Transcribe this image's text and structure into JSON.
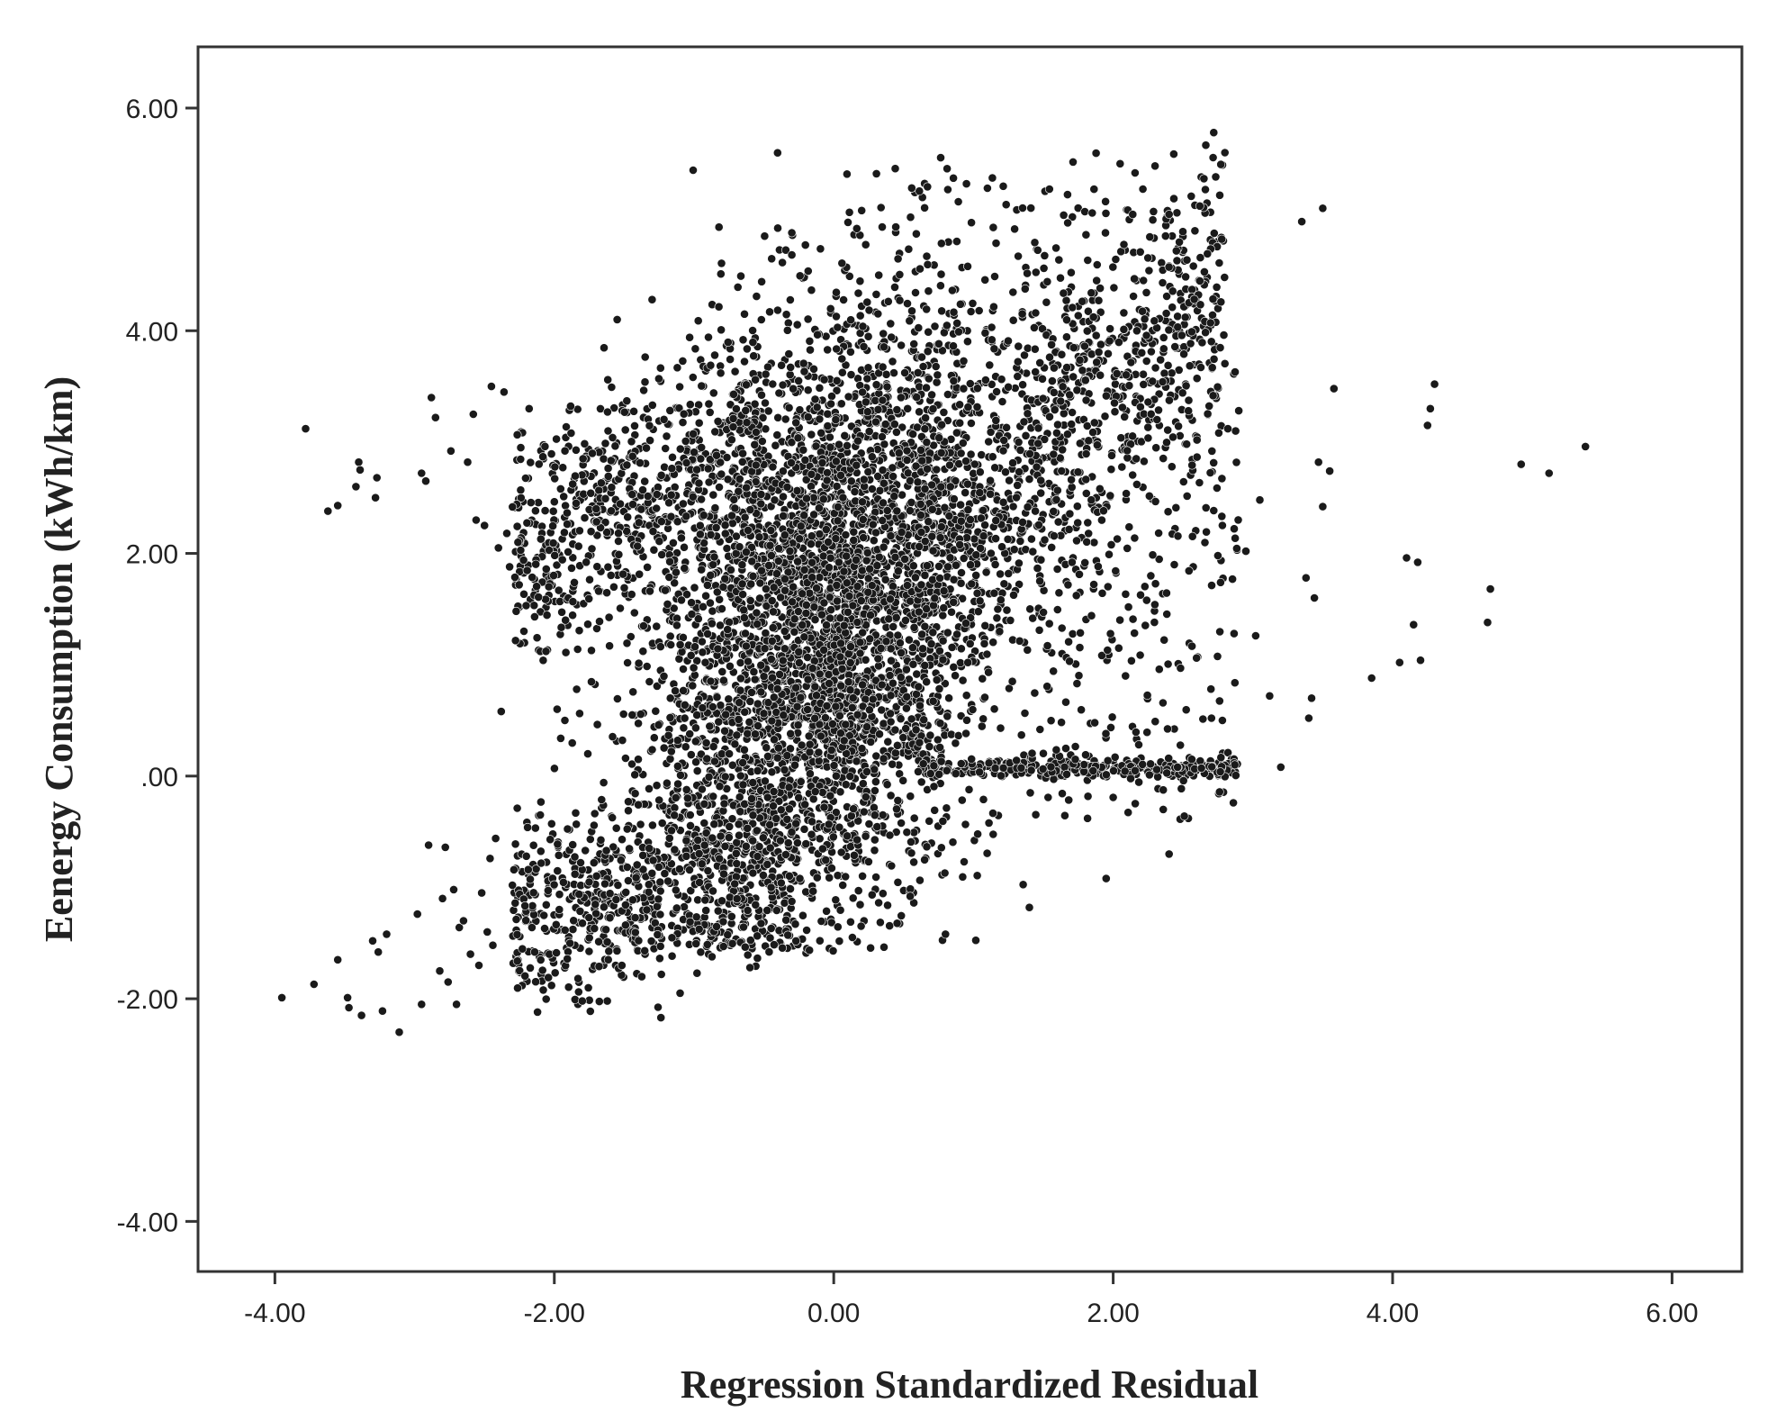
{
  "chart_data": {
    "type": "scatter",
    "title": "",
    "xlabel": "Regression Standardized Residual",
    "ylabel": "Eenergy Consumption (kWh/km)",
    "xlim": [
      -4.55,
      6.5
    ],
    "ylim": [
      -4.45,
      6.55
    ],
    "x_ticks": [
      -4,
      -2,
      0,
      2,
      4,
      6
    ],
    "x_tick_labels": [
      "-4.00",
      "-2.00",
      "0.00",
      "2.00",
      "4.00",
      "6.00"
    ],
    "y_ticks": [
      -4,
      -2,
      0,
      2,
      4,
      6
    ],
    "y_tick_labels": [
      "-4.00",
      "-2.00",
      ".00",
      "2.00",
      "4.00",
      "6.00"
    ],
    "grid": false,
    "legend": "none",
    "marker_color": "#1a1a1a",
    "series": [
      {
        "points": [
          [
            -3.95,
            -1.99
          ],
          [
            -3.78,
            3.12
          ],
          [
            -3.72,
            -1.87
          ],
          [
            -3.62,
            2.38
          ],
          [
            -3.55,
            2.43
          ],
          [
            -3.55,
            -1.65
          ],
          [
            -3.48,
            -1.99
          ],
          [
            -3.47,
            -2.08
          ],
          [
            -3.42,
            2.6
          ],
          [
            -3.4,
            2.82
          ],
          [
            -3.39,
            2.75
          ],
          [
            -3.38,
            -2.15
          ],
          [
            -3.3,
            -1.48
          ],
          [
            -3.28,
            2.5
          ],
          [
            -3.27,
            2.68
          ],
          [
            -3.26,
            -1.58
          ],
          [
            -3.23,
            -2.11
          ],
          [
            -3.2,
            -1.42
          ],
          [
            -3.11,
            -2.3
          ],
          [
            -2.98,
            -1.24
          ],
          [
            -2.95,
            -2.05
          ],
          [
            -2.95,
            2.72
          ],
          [
            -2.92,
            2.65
          ],
          [
            -2.9,
            -0.62
          ],
          [
            -2.88,
            3.4
          ],
          [
            -2.85,
            3.22
          ],
          [
            -2.82,
            -1.75
          ],
          [
            -2.8,
            -1.1
          ],
          [
            -2.78,
            -0.64
          ],
          [
            -2.76,
            -1.85
          ],
          [
            -2.74,
            2.92
          ],
          [
            -2.72,
            -1.02
          ],
          [
            -2.7,
            -2.05
          ],
          [
            -2.68,
            -1.36
          ],
          [
            -2.65,
            -1.3
          ],
          [
            -2.62,
            2.82
          ],
          [
            -2.6,
            -1.6
          ],
          [
            -2.58,
            3.25
          ],
          [
            -2.56,
            2.3
          ],
          [
            -2.54,
            -1.7
          ],
          [
            -2.52,
            -1.05
          ],
          [
            -2.5,
            2.25
          ],
          [
            -2.48,
            -1.4
          ],
          [
            -2.46,
            -0.74
          ],
          [
            -2.45,
            3.5
          ],
          [
            -2.44,
            -1.52
          ],
          [
            -2.42,
            -0.56
          ],
          [
            -2.4,
            2.05
          ],
          [
            -2.38,
            0.58
          ],
          [
            -2.36,
            3.45
          ],
          [
            -2.34,
            2.18
          ],
          [
            -2.32,
            1.88
          ],
          [
            -2.3,
            -0.98
          ],
          [
            -2.28,
            -1.14
          ],
          [
            -2.26,
            2.1
          ],
          [
            -2.24,
            2.95
          ],
          [
            -2.22,
            1.94
          ],
          [
            -2.2,
            -0.72
          ],
          [
            -2.18,
            3.3
          ],
          [
            -2.16,
            -1.36
          ],
          [
            -2.14,
            -1.58
          ],
          [
            -2.12,
            -2.12
          ],
          [
            -2.1,
            1.12
          ],
          [
            -2.06,
            1.12
          ],
          [
            -2.02,
            -1.88
          ],
          [
            -1.98,
            0.6
          ],
          [
            -1.92,
            1.4
          ],
          [
            -1.88,
            3.08
          ],
          [
            -1.84,
            0.78
          ],
          [
            -1.8,
            -2.02
          ],
          [
            -1.76,
            0.2
          ],
          [
            -1.7,
            2.4
          ],
          [
            -1.55,
            4.1
          ],
          [
            -1.3,
            4.28
          ],
          [
            -1.1,
            -1.95
          ],
          [
            -0.6,
            -1.72
          ],
          [
            -0.3,
            4.88
          ],
          [
            0.55,
            5.02
          ],
          [
            0.8,
            -1.42
          ],
          [
            0.95,
            5.32
          ],
          [
            1.1,
            5.28
          ],
          [
            1.4,
            -1.18
          ],
          [
            1.95,
            -0.92
          ],
          [
            2.05,
            5.5
          ],
          [
            2.3,
            5.48
          ],
          [
            2.4,
            -0.7
          ],
          [
            2.62,
            5.12
          ],
          [
            2.72,
            5.78
          ],
          [
            2.8,
            5.6
          ],
          [
            2.86,
            -0.24
          ],
          [
            2.95,
            2.02
          ],
          [
            3.02,
            1.26
          ],
          [
            3.05,
            2.48
          ],
          [
            3.12,
            0.72
          ],
          [
            3.2,
            0.08
          ],
          [
            3.35,
            4.98
          ],
          [
            3.38,
            1.78
          ],
          [
            3.4,
            0.52
          ],
          [
            3.42,
            0.7
          ],
          [
            3.44,
            1.6
          ],
          [
            3.47,
            2.82
          ],
          [
            3.5,
            5.1
          ],
          [
            3.5,
            2.42
          ],
          [
            3.55,
            2.74
          ],
          [
            3.58,
            3.48
          ],
          [
            3.85,
            0.88
          ],
          [
            4.05,
            1.02
          ],
          [
            4.1,
            1.96
          ],
          [
            4.15,
            1.36
          ],
          [
            4.18,
            1.92
          ],
          [
            4.2,
            1.04
          ],
          [
            4.25,
            3.15
          ],
          [
            4.27,
            3.3
          ],
          [
            4.3,
            3.52
          ],
          [
            4.68,
            1.38
          ],
          [
            4.7,
            1.68
          ],
          [
            4.92,
            2.8
          ],
          [
            5.12,
            2.72
          ],
          [
            5.38,
            2.96
          ]
        ]
      }
    ]
  }
}
